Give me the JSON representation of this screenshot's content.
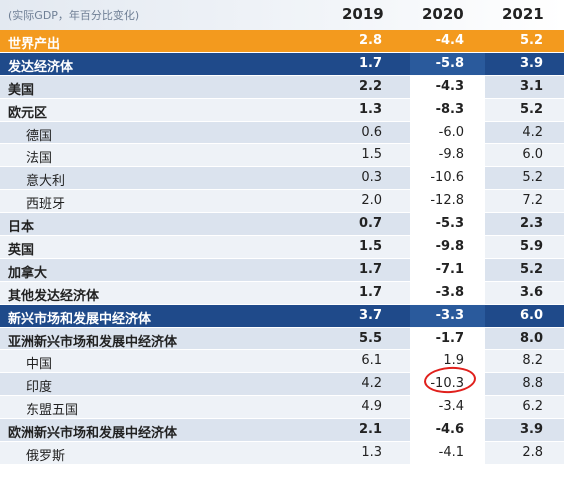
{
  "header": {
    "subtitle": "(实际GDP，年百分比变化)",
    "years": [
      "2019",
      "2020",
      "2021"
    ]
  },
  "rows": [
    {
      "label": "世界产出",
      "values": [
        "2.8",
        "-4.4",
        "5.2"
      ],
      "style": "orange",
      "indent": false
    },
    {
      "label": "发达经济体",
      "values": [
        "1.7",
        "-5.8",
        "3.9"
      ],
      "style": "navy",
      "indent": false
    },
    {
      "label": "美国",
      "values": [
        "2.2",
        "-4.3",
        "3.1"
      ],
      "style": "shade bold",
      "indent": false
    },
    {
      "label": "欧元区",
      "values": [
        "1.3",
        "-8.3",
        "5.2"
      ],
      "style": "light bold",
      "indent": false
    },
    {
      "label": "德国",
      "values": [
        "0.6",
        "-6.0",
        "4.2"
      ],
      "style": "shade",
      "indent": true
    },
    {
      "label": "法国",
      "values": [
        "1.5",
        "-9.8",
        "6.0"
      ],
      "style": "light",
      "indent": true
    },
    {
      "label": "意大利",
      "values": [
        "0.3",
        "-10.6",
        "5.2"
      ],
      "style": "shade",
      "indent": true
    },
    {
      "label": "西班牙",
      "values": [
        "2.0",
        "-12.8",
        "7.2"
      ],
      "style": "light",
      "indent": true
    },
    {
      "label": "日本",
      "values": [
        "0.7",
        "-5.3",
        "2.3"
      ],
      "style": "shade bold",
      "indent": false
    },
    {
      "label": "英国",
      "values": [
        "1.5",
        "-9.8",
        "5.9"
      ],
      "style": "light bold",
      "indent": false
    },
    {
      "label": "加拿大",
      "values": [
        "1.7",
        "-7.1",
        "5.2"
      ],
      "style": "shade bold",
      "indent": false
    },
    {
      "label": "其他发达经济体",
      "values": [
        "1.7",
        "-3.8",
        "3.6"
      ],
      "style": "light bold",
      "indent": false
    },
    {
      "label": "新兴市场和发展中经济体",
      "values": [
        "3.7",
        "-3.3",
        "6.0"
      ],
      "style": "navy",
      "indent": false
    },
    {
      "label": "亚洲新兴市场和发展中经济体",
      "values": [
        "5.5",
        "-1.7",
        "8.0"
      ],
      "style": "shade bold",
      "indent": false
    },
    {
      "label": "中国",
      "values": [
        "6.1",
        "1.9",
        "8.2"
      ],
      "style": "light",
      "indent": true
    },
    {
      "label": "印度",
      "values": [
        "4.2",
        "-10.3",
        "8.8"
      ],
      "style": "shade",
      "indent": true
    },
    {
      "label": "东盟五国",
      "values": [
        "4.9",
        "-3.4",
        "6.2"
      ],
      "style": "light",
      "indent": true
    },
    {
      "label": "欧洲新兴市场和发展中经济体",
      "values": [
        "2.1",
        "-4.6",
        "3.9"
      ],
      "style": "shade bold",
      "indent": false
    },
    {
      "label": "俄罗斯",
      "values": [
        "1.3",
        "-4.1",
        "2.8"
      ],
      "style": "light",
      "indent": true
    }
  ],
  "annotation": {
    "type": "hand-drawn-circle",
    "color": "#e0201c",
    "target": "中国 2020"
  }
}
